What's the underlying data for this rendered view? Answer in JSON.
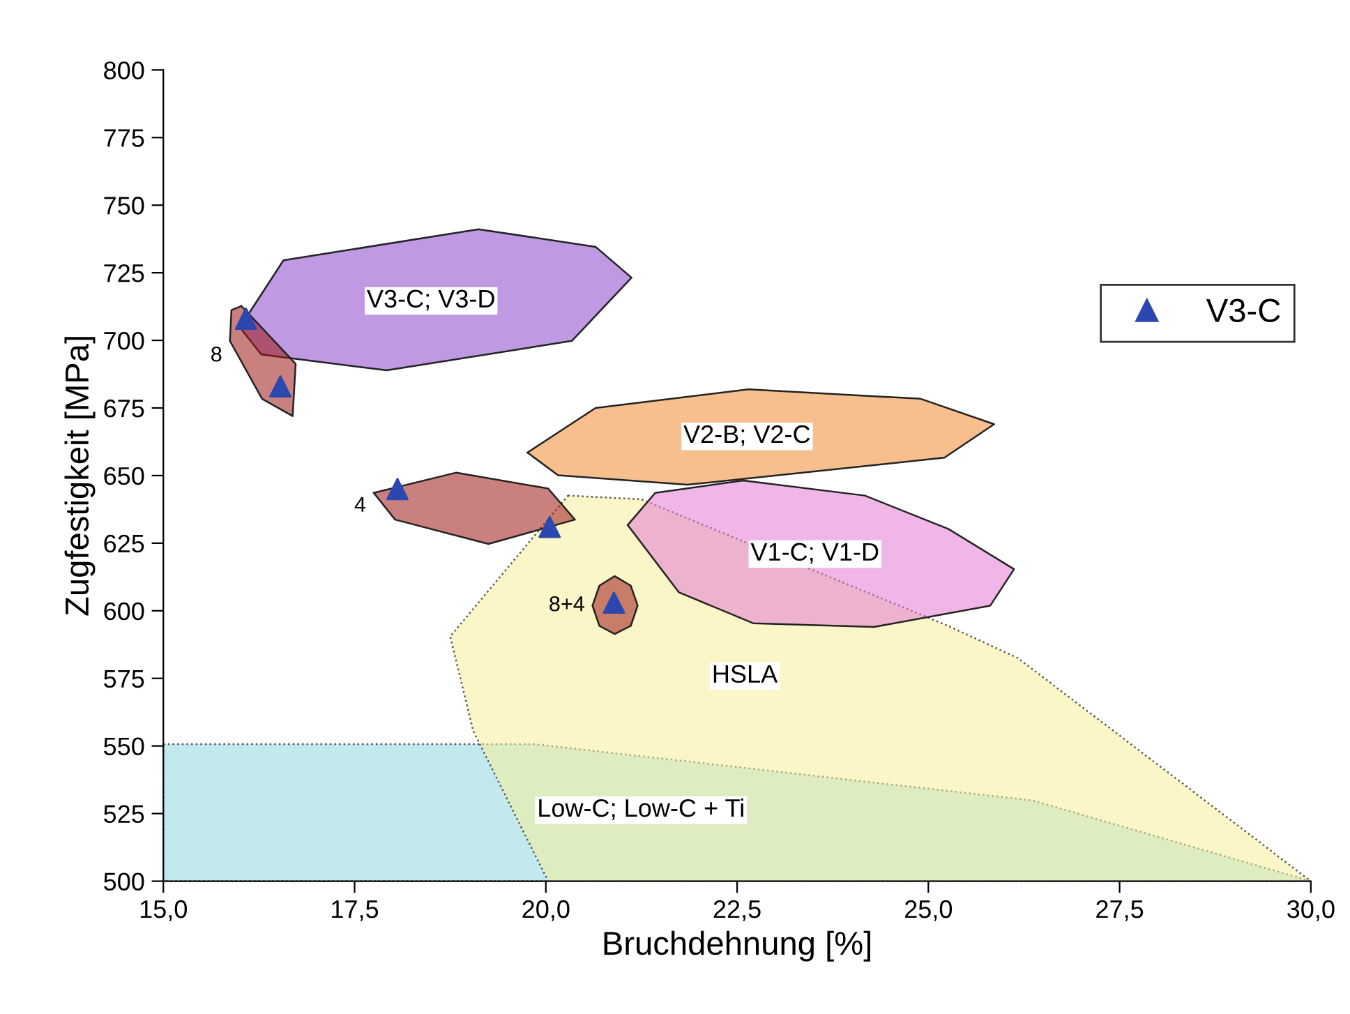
{
  "chart_data": {
    "type": "scatter",
    "xlabel": "Bruchdehnung [%]",
    "ylabel": "Zugfestigkeit [MPa]",
    "xlim": [
      15,
      30
    ],
    "ylim": [
      500,
      800
    ],
    "xticks": [
      {
        "value": 15,
        "label": "15,0"
      },
      {
        "value": 17.5,
        "label": "17,5"
      },
      {
        "value": 20,
        "label": "20,0"
      },
      {
        "value": 22.5,
        "label": "22,5"
      },
      {
        "value": 25,
        "label": "25,0"
      },
      {
        "value": 27.5,
        "label": "27,5"
      },
      {
        "value": 30,
        "label": "30,0"
      }
    ],
    "yticks": [
      500,
      525,
      550,
      575,
      600,
      625,
      650,
      675,
      700,
      725,
      750,
      775,
      800
    ],
    "legend": "right",
    "series": [
      {
        "type": "area",
        "name": "Low-C; Low-C + Ti",
        "color": "#8fd8e0",
        "line_style": "dotted",
        "x": [
          15,
          19.85,
          26.37,
          30,
          15
        ],
        "values": [
          550.7,
          550.7,
          529.8,
          500,
          500
        ]
      },
      {
        "type": "area",
        "name": "HSLA",
        "color": "#f5ef9a",
        "line_style": "dotted",
        "x": [
          20.29,
          21.25,
          25.26,
          26.17,
          30,
          20.03,
          19.05,
          18.75
        ],
        "values": [
          642.6,
          641.2,
          594.4,
          582.5,
          500,
          500,
          555.6,
          590.5
        ]
      },
      {
        "type": "area",
        "name": "V3-C; V3-D",
        "color": "#8a46c8",
        "line_style": "solid",
        "x": [
          16.0,
          16.57,
          19.12,
          20.65,
          21.12,
          20.34,
          17.92,
          16.28
        ],
        "values": [
          704.8,
          729.6,
          741.1,
          734.6,
          723.2,
          699.8,
          688.9,
          694.8
        ]
      },
      {
        "type": "area",
        "name": "V2-B; V2-C",
        "color": "#f08a30",
        "line_style": "solid",
        "x": [
          19.76,
          20.65,
          22.65,
          24.9,
          25.86,
          25.21,
          21.85,
          20.16
        ],
        "values": [
          658.5,
          675.0,
          681.9,
          678.4,
          669.0,
          656.6,
          646.6,
          650.1
        ]
      },
      {
        "type": "area",
        "name": "V1-C; V1-D",
        "color": "#e27ad4",
        "line_style": "solid",
        "x": [
          21.07,
          21.43,
          22.58,
          24.17,
          25.26,
          26.12,
          25.81,
          24.29,
          22.71,
          21.74
        ],
        "values": [
          631.7,
          643.6,
          648.2,
          642.6,
          630.3,
          615.4,
          601.9,
          594.0,
          595.4,
          606.8
        ]
      },
      {
        "type": "area",
        "name": "8",
        "color": "#a01818",
        "line_style": "solid",
        "x": [
          16.02,
          16.73,
          16.69,
          16.29,
          15.87,
          15.89
        ],
        "values": [
          712.7,
          691.3,
          672.0,
          678.4,
          699.8,
          711.2
        ]
      },
      {
        "type": "area",
        "name": "4",
        "color": "#a01818",
        "line_style": "solid",
        "x": [
          17.75,
          18.83,
          20.03,
          20.38,
          19.25,
          18.03
        ],
        "values": [
          643.6,
          651.1,
          645.2,
          633.7,
          624.7,
          633.7
        ]
      },
      {
        "type": "area",
        "name": "8+4",
        "color": "#a01818",
        "line_style": "solid",
        "x": [
          20.61,
          20.7,
          20.9,
          21.11,
          21.2,
          21.11,
          20.9,
          20.7
        ],
        "values": [
          601.9,
          609.3,
          612.8,
          609.3,
          601.9,
          594.4,
          591.4,
          594.4
        ]
      },
      {
        "name": "V3-C",
        "color": "#2a48b0",
        "marker": "triangle",
        "x": [
          16.08,
          16.53,
          18.06,
          20.05,
          20.89
        ],
        "values": [
          708,
          683,
          645,
          631,
          603
        ]
      }
    ]
  }
}
